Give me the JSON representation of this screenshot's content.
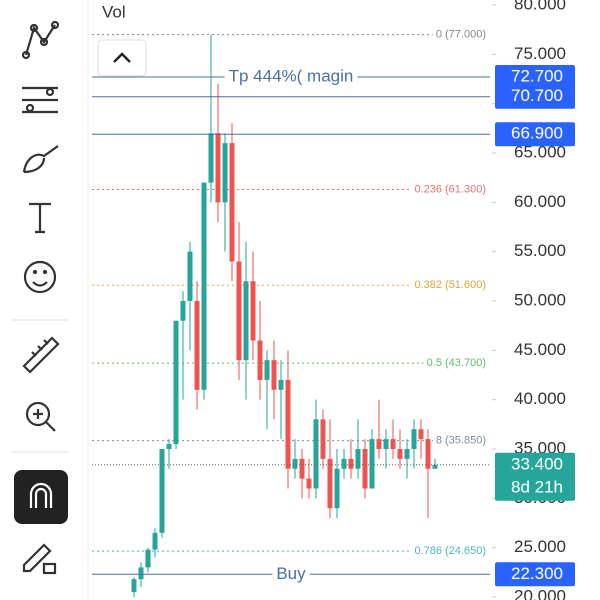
{
  "header": {
    "indicator": "Vol"
  },
  "chart_data": {
    "type": "candlestick",
    "ylim": [
      20,
      80
    ],
    "yticks": [
      {
        "value": 20,
        "label": "20.000"
      },
      {
        "value": 25,
        "label": "25.000"
      },
      {
        "value": 30,
        "label": "30.000"
      },
      {
        "value": 35,
        "label": "35.000"
      },
      {
        "value": 40,
        "label": "40.000"
      },
      {
        "value": 45,
        "label": "45.000"
      },
      {
        "value": 50,
        "label": "50.000"
      },
      {
        "value": 55,
        "label": "55.000"
      },
      {
        "value": 60,
        "label": "60.000"
      },
      {
        "value": 65,
        "label": "65.000"
      },
      {
        "value": 70,
        "label": "70.000"
      },
      {
        "value": 75,
        "label": "75.000"
      },
      {
        "value": 80,
        "label": "80.000"
      }
    ],
    "up_color": "#26a69a",
    "down_color": "#ef5350",
    "candles": [
      [
        20.5,
        22,
        20,
        21.8
      ],
      [
        21.8,
        23.5,
        21,
        23
      ],
      [
        23,
        25,
        22.5,
        24.8
      ],
      [
        24.8,
        27,
        24,
        26.5
      ],
      [
        26.5,
        35,
        26,
        35
      ],
      [
        35,
        36,
        33,
        35.5
      ],
      [
        35.5,
        48,
        35,
        48
      ],
      [
        48,
        51,
        40,
        50
      ],
      [
        50,
        56,
        45,
        55
      ],
      [
        50,
        52,
        39,
        41
      ],
      [
        41,
        62,
        40,
        62
      ],
      [
        62,
        77,
        60,
        67
      ],
      [
        67,
        72,
        58,
        60
      ],
      [
        60,
        67,
        55,
        66
      ],
      [
        66,
        68,
        52,
        54
      ],
      [
        54,
        58,
        42,
        44
      ],
      [
        44,
        56,
        40,
        52
      ],
      [
        52,
        55,
        44,
        46
      ],
      [
        46,
        50,
        40,
        42
      ],
      [
        42,
        45,
        37,
        44
      ],
      [
        44,
        46,
        38,
        41
      ],
      [
        41,
        44,
        36,
        42
      ],
      [
        42,
        45,
        31,
        33
      ],
      [
        33,
        36,
        32,
        34
      ],
      [
        34,
        35,
        30,
        32
      ],
      [
        32,
        34,
        30,
        31
      ],
      [
        31,
        40,
        30,
        38
      ],
      [
        38,
        39,
        33,
        34
      ],
      [
        34,
        38,
        28,
        29
      ],
      [
        29,
        35,
        28,
        33
      ],
      [
        33,
        35,
        32,
        34
      ],
      [
        34,
        36,
        32,
        33
      ],
      [
        33,
        38,
        32,
        35
      ],
      [
        35,
        36,
        30,
        31
      ],
      [
        31,
        37,
        31,
        36
      ],
      [
        36,
        40,
        34,
        35
      ],
      [
        35,
        37,
        33,
        36
      ],
      [
        36,
        38,
        34,
        35
      ],
      [
        35,
        37,
        33,
        34
      ],
      [
        34,
        36,
        32,
        35
      ],
      [
        35,
        38,
        33,
        37
      ],
      [
        37,
        38,
        34,
        36
      ],
      [
        36,
        37,
        28,
        33
      ],
      [
        33,
        34,
        33,
        33.4
      ]
    ],
    "fib_levels": [
      {
        "value": 77,
        "label": "0 (77.000)",
        "color": "#888888"
      },
      {
        "value": 61.3,
        "label": "0.236 (61.300)",
        "color": "#e57373"
      },
      {
        "value": 51.6,
        "label": "0.382 (51.600)",
        "color": "#e0a33c"
      },
      {
        "value": 43.7,
        "label": "0.5 (43.700)",
        "color": "#66bb6a"
      },
      {
        "value": 35.85,
        "label": "8 (35.850)",
        "color": "#78909c"
      },
      {
        "value": 24.65,
        "label": "0.786 (24.650)",
        "color": "#4fb3bf"
      }
    ],
    "price_lines": [
      {
        "value": 72.7,
        "label": "72.700",
        "text": "Tp 444%( magin"
      },
      {
        "value": 70.7,
        "label": "70.700"
      },
      {
        "value": 66.9,
        "label": "66.900"
      },
      {
        "value": 22.3,
        "label": "22.300",
        "text": "Buy"
      }
    ],
    "line_color": "#4a6fa5",
    "label_color": "#2962ff",
    "current": {
      "value": 33.4,
      "label": "33.400",
      "countdown": "8d 21h",
      "color": "#26a69a"
    }
  }
}
